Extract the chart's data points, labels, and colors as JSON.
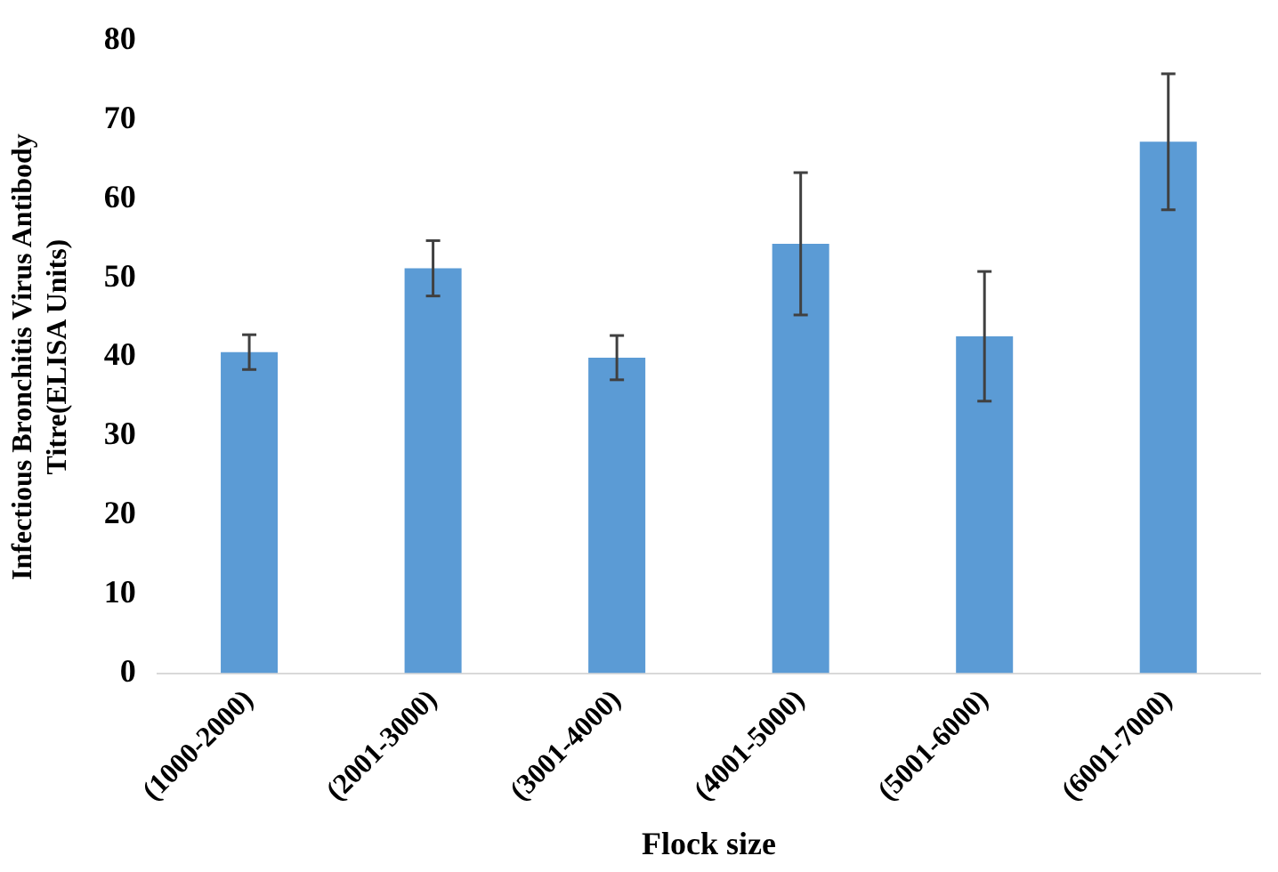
{
  "chart_data": {
    "type": "bar",
    "xlabel": "Flock size",
    "ylabel": "Infectious Bronchitis Virus Antibody Titre(ELISA Units)",
    "categories": [
      "(1000-2000)",
      "(2001-3000)",
      "(3001-4000)",
      "(4001-5000)",
      "(5001-6000)",
      "(6001-7000)"
    ],
    "values": [
      40.6,
      51.2,
      39.9,
      54.3,
      42.6,
      67.2
    ],
    "errors": [
      2.2,
      3.5,
      2.8,
      9.0,
      8.2,
      8.6
    ],
    "color": "#5b9bd5",
    "ylim": [
      0,
      80
    ],
    "yticks": [
      0,
      10,
      20,
      30,
      40,
      50,
      60,
      70,
      80
    ],
    "grid": false
  }
}
